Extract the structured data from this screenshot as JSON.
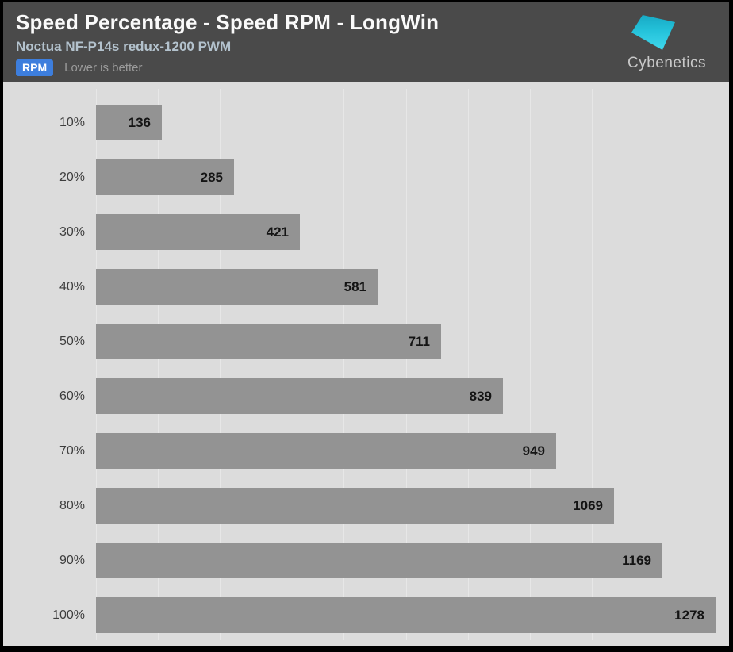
{
  "header": {
    "title": "Speed Percentage - Speed RPM - LongWin",
    "subtitle": "Noctua NF-P14s redux-1200 PWM",
    "badge": "RPM",
    "note": "Lower is better",
    "logo_text": "Cybenetics"
  },
  "colors": {
    "header_bg": "#4a4a4a",
    "chart_bg": "#dcdcdc",
    "bar": "#939393",
    "badge_bg": "#3d7edd",
    "subtitle": "#b3c2cd",
    "gridline": "#e7e7e7",
    "logo_gradient_top": "#17a9c4",
    "logo_gradient_bottom": "#40d9ee"
  },
  "chart_data": {
    "type": "bar",
    "orientation": "horizontal",
    "title": "Speed Percentage - Speed RPM - LongWin",
    "subtitle": "Noctua NF-P14s redux-1200 PWM",
    "unit": "RPM",
    "note": "Lower is better",
    "categories": [
      "10%",
      "20%",
      "30%",
      "40%",
      "50%",
      "60%",
      "70%",
      "80%",
      "90%",
      "100%"
    ],
    "values": [
      136,
      285,
      421,
      581,
      711,
      839,
      949,
      1069,
      1169,
      1278
    ],
    "xlim": [
      0,
      1278
    ],
    "grid": true,
    "grid_divisions": 10,
    "legend_position": "none",
    "value_labels": "inside-end"
  }
}
